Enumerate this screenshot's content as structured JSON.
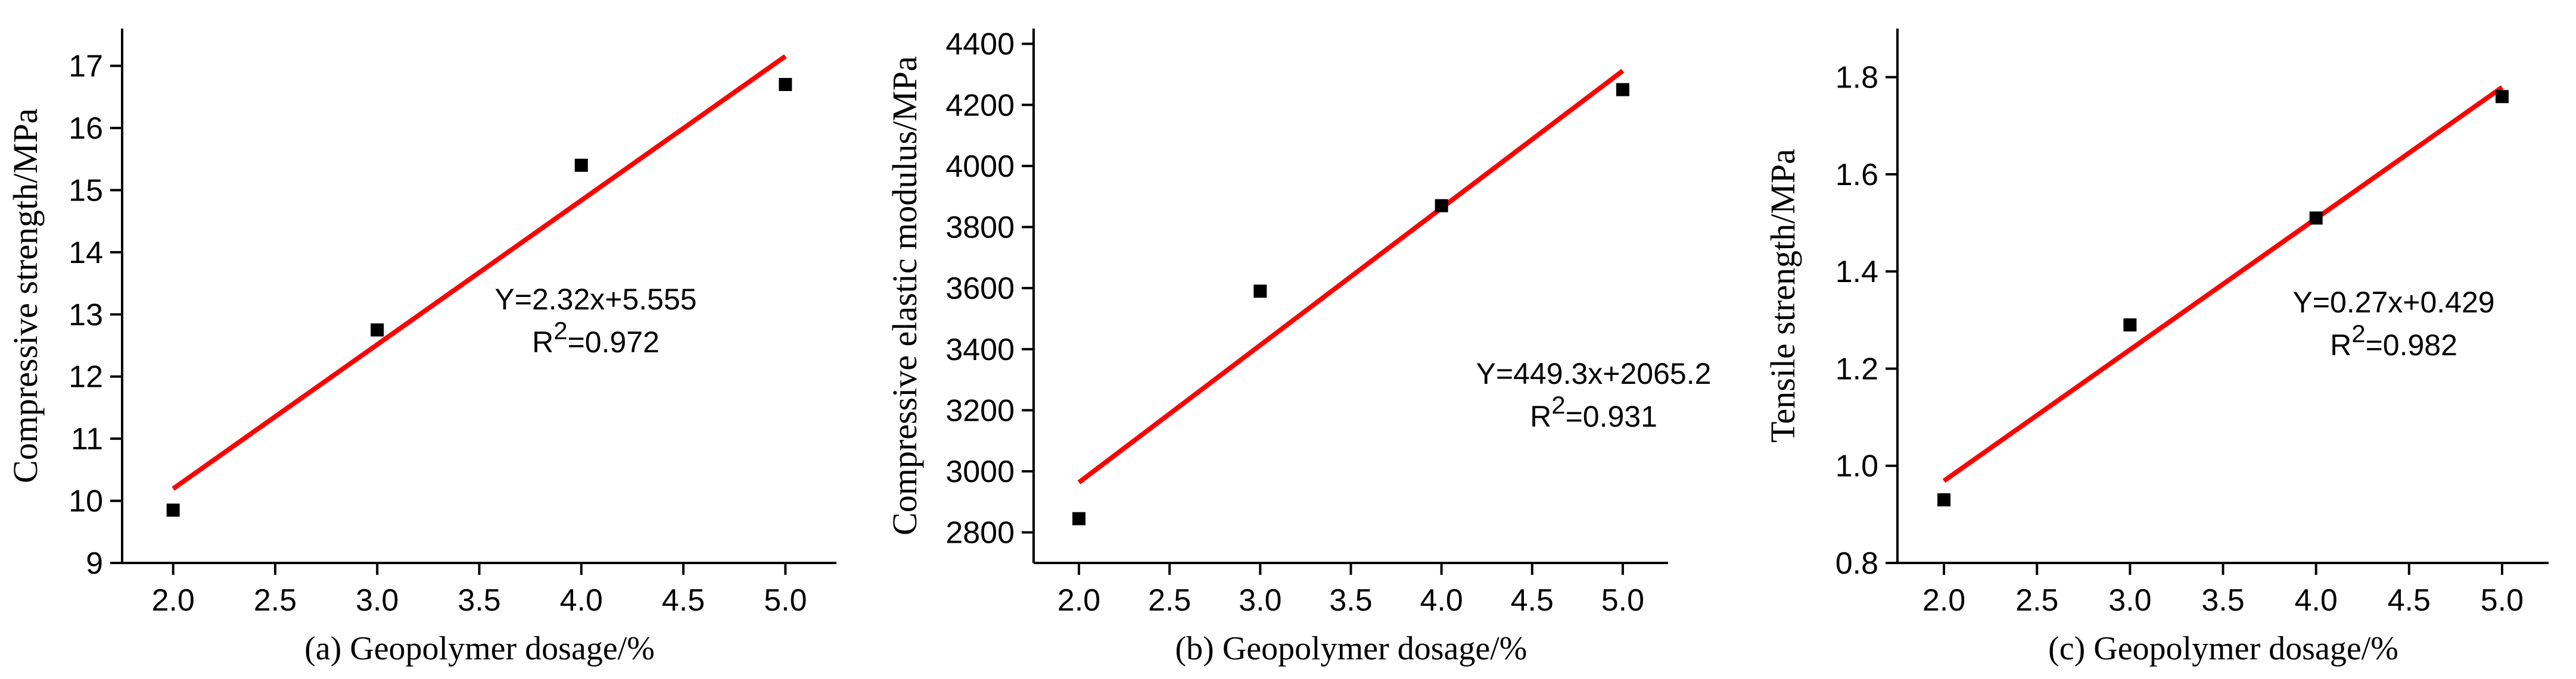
{
  "chart_data": [
    {
      "type": "scatter",
      "xlabel": "(a) Geopolymer dosage/%",
      "ylabel": "Compressive strength/MPa",
      "x": [
        2,
        3,
        4,
        5
      ],
      "y": [
        9.85,
        12.75,
        15.4,
        16.7
      ],
      "xlim": [
        1.75,
        5.25
      ],
      "ylim": [
        9,
        17.6
      ],
      "xticks": [
        "2.0",
        "2.5",
        "3.0",
        "3.5",
        "4.0",
        "4.5",
        "5.0"
      ],
      "yticks": [
        "9",
        "10",
        "11",
        "12",
        "13",
        "14",
        "15",
        "16",
        "17"
      ],
      "fit": {
        "slope": 2.32,
        "intercept": 5.555,
        "x_range": [
          2,
          5
        ]
      },
      "equation": "Y=2.32x+5.555",
      "r2_prefix": "R",
      "r2_sup": "2",
      "r2_value": "=0.972",
      "marker_color": "#000000",
      "line_color": "#ff0000",
      "grid": false
    },
    {
      "type": "scatter",
      "xlabel": "(b) Geopolymer dosage/%",
      "ylabel": "Compressive elastic modulus/MPa",
      "x": [
        2,
        3,
        4,
        5
      ],
      "y": [
        2845,
        3590,
        3870,
        4250
      ],
      "xlim": [
        1.75,
        5.25
      ],
      "ylim": [
        2700,
        4450
      ],
      "xticks": [
        "2.0",
        "2.5",
        "3.0",
        "3.5",
        "4.0",
        "4.5",
        "5.0"
      ],
      "yticks": [
        "2800",
        "3000",
        "3200",
        "3400",
        "3600",
        "3800",
        "4000",
        "4200",
        "4400"
      ],
      "fit": {
        "slope": 449.3,
        "intercept": 2065.2,
        "x_range": [
          2,
          5
        ]
      },
      "equation": "Y=449.3x+2065.2",
      "r2_prefix": "R",
      "r2_sup": "2",
      "r2_value": "=0.931",
      "marker_color": "#000000",
      "line_color": "#ff0000",
      "grid": false
    },
    {
      "type": "scatter",
      "xlabel": "(c) Geopolymer dosage/%",
      "ylabel": "Tensile strength/MPa",
      "x": [
        2,
        3,
        4,
        5
      ],
      "y": [
        0.93,
        1.29,
        1.51,
        1.76
      ],
      "xlim": [
        1.75,
        5.25
      ],
      "ylim": [
        0.8,
        1.9
      ],
      "xticks": [
        "2.0",
        "2.5",
        "3.0",
        "3.5",
        "4.0",
        "4.5",
        "5.0"
      ],
      "yticks": [
        "0.8",
        "1.0",
        "1.2",
        "1.4",
        "1.6",
        "1.8"
      ],
      "fit": {
        "slope": 0.27,
        "intercept": 0.429,
        "x_range": [
          2,
          5
        ]
      },
      "equation": "Y=0.27x+0.429",
      "r2_prefix": "R",
      "r2_sup": "2",
      "r2_value": "=0.982",
      "marker_color": "#000000",
      "line_color": "#ff0000",
      "grid": false
    }
  ]
}
